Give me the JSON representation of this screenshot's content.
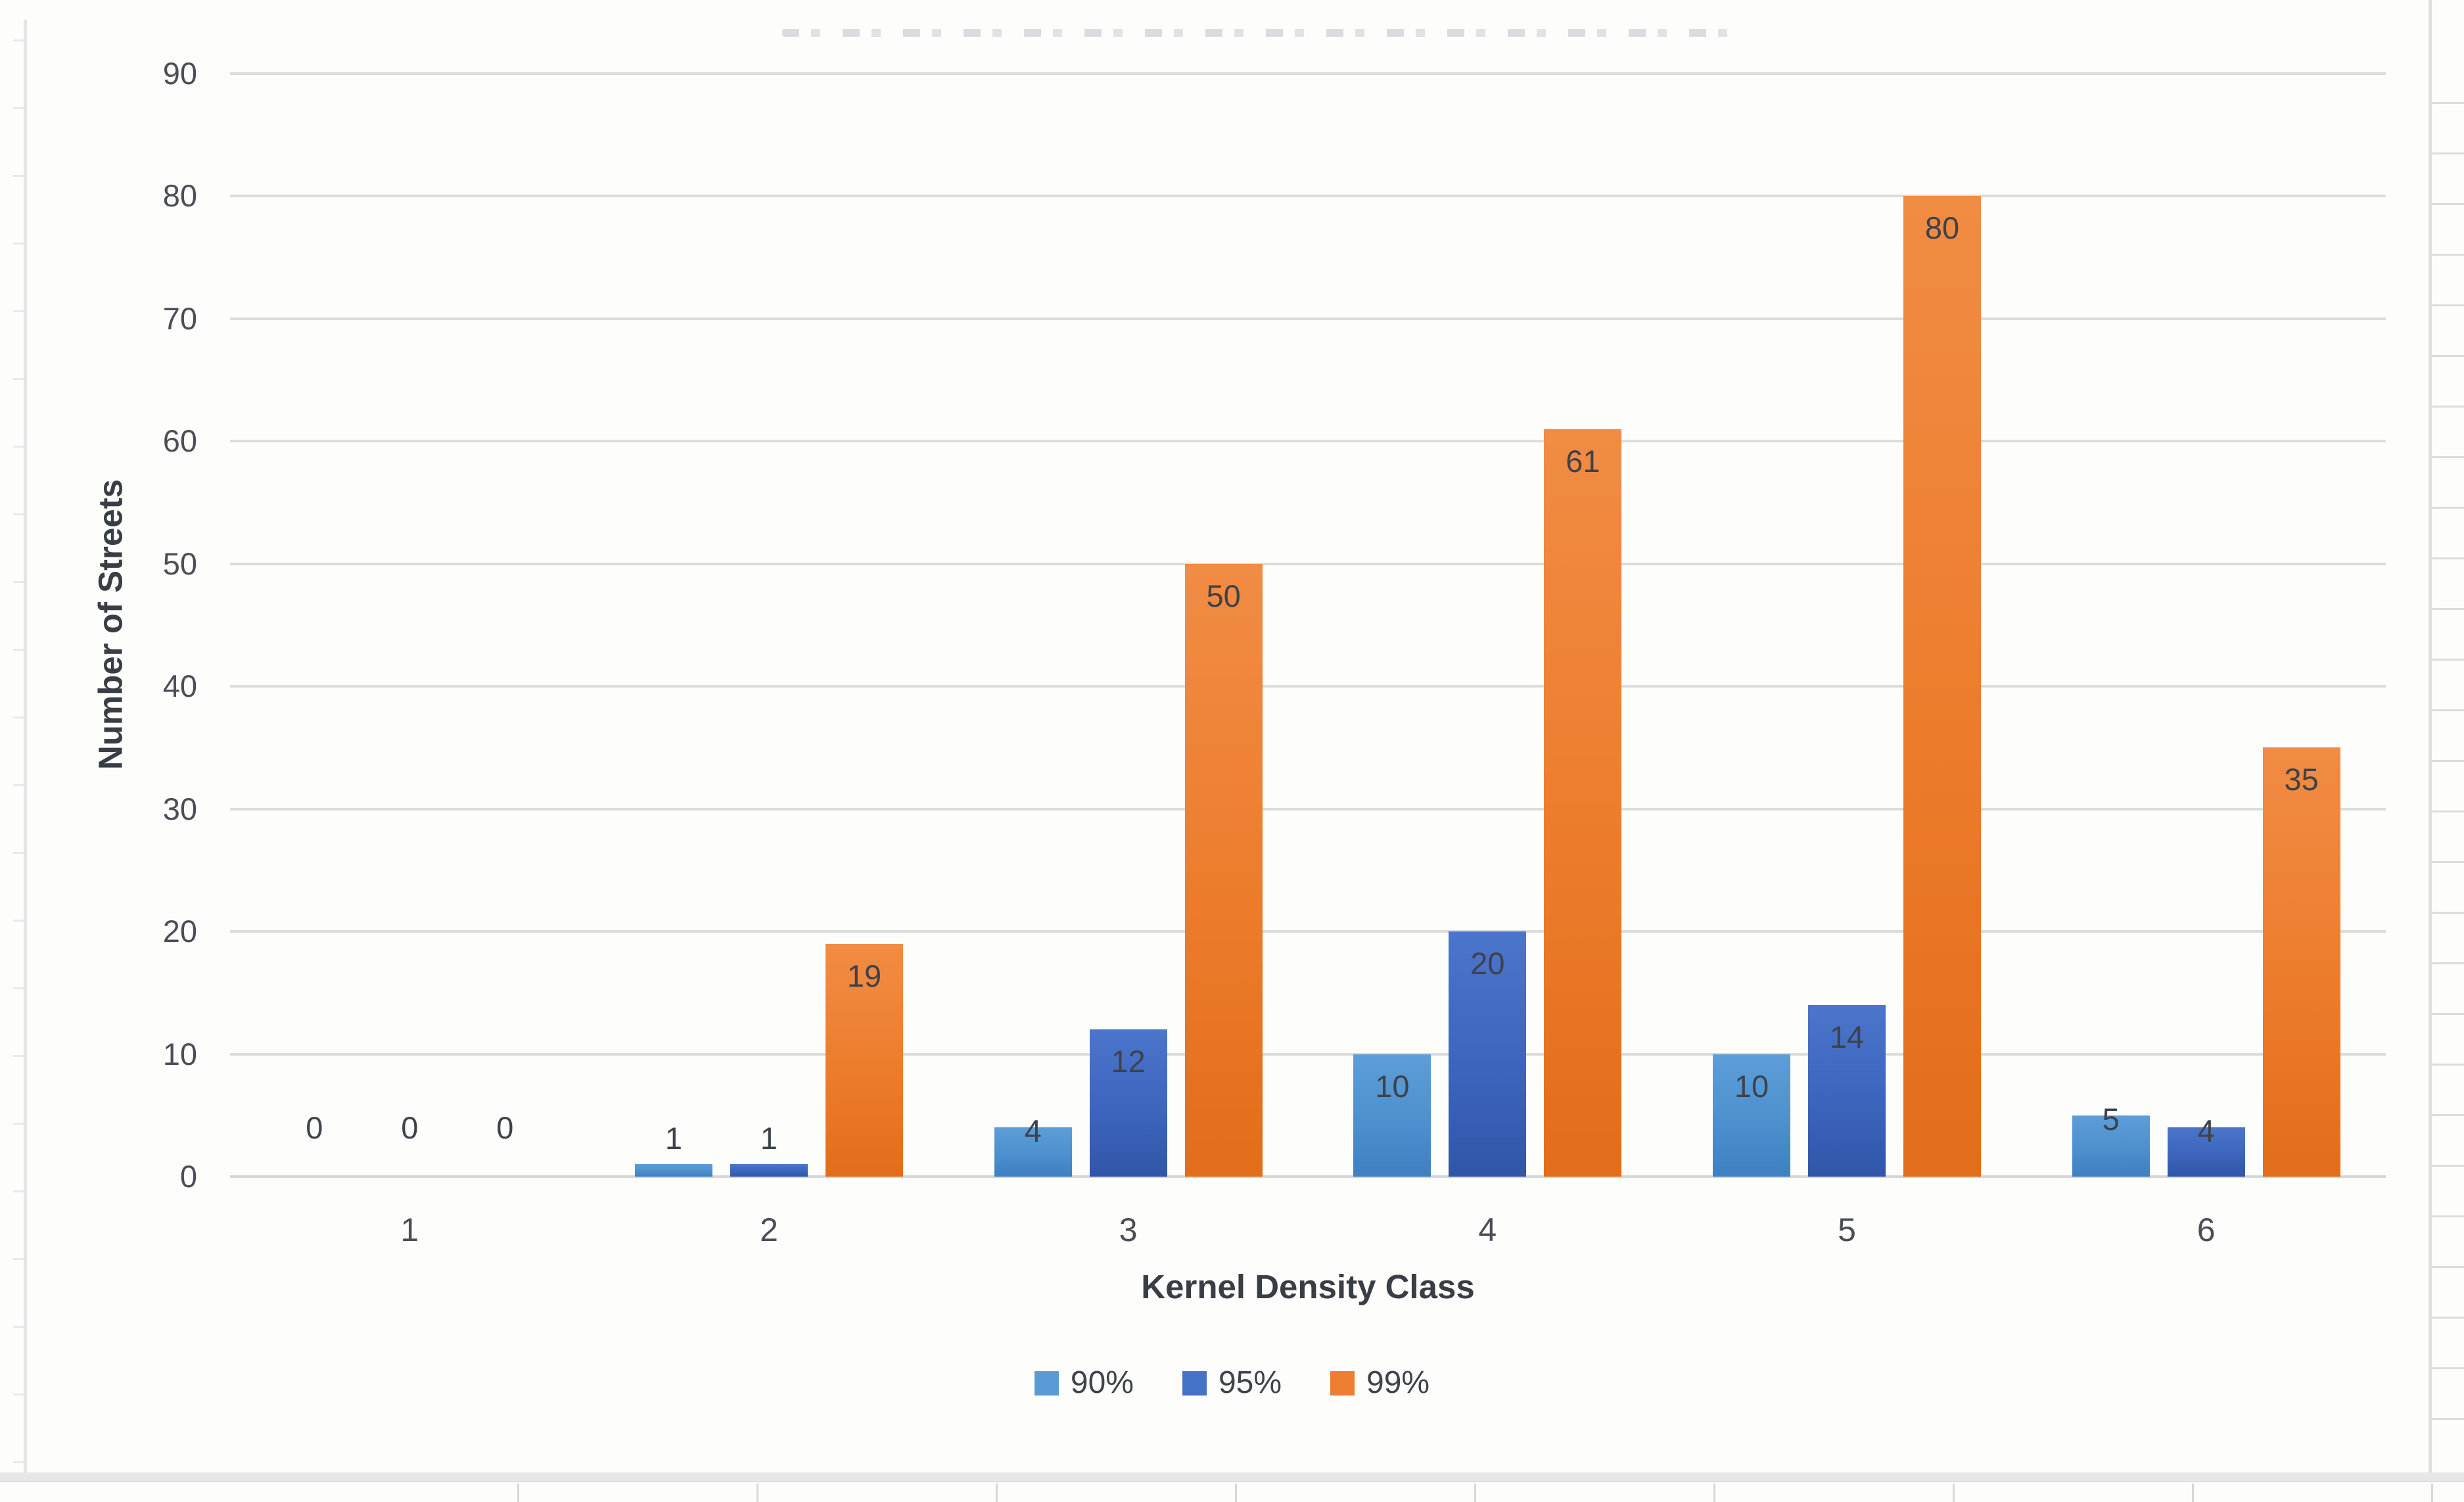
{
  "chart_data": {
    "type": "bar",
    "categories": [
      "1",
      "2",
      "3",
      "4",
      "5",
      "6"
    ],
    "series": [
      {
        "name": "90%",
        "color": "#5b9bd5",
        "values": [
          0,
          1,
          4,
          10,
          10,
          5
        ]
      },
      {
        "name": "95%",
        "color": "#4472c4",
        "values": [
          0,
          1,
          12,
          20,
          14,
          4
        ]
      },
      {
        "name": "99%",
        "color": "#ed7d31",
        "values": [
          0,
          19,
          50,
          61,
          80,
          35
        ]
      }
    ],
    "xlabel": "Kernel Density Class",
    "ylabel": "Number of Streets",
    "ylim": [
      0,
      90
    ],
    "ytick_step": 10,
    "y_tick_labels": [
      "90",
      "80",
      "70",
      "60",
      "50",
      "40",
      "30",
      "20",
      "10",
      "0"
    ],
    "grid": true,
    "legend_position": "bottom",
    "data_labels": true
  },
  "colors": {
    "gridline": "#dcdcdc",
    "tick_label": "#4b4e55",
    "data_label": "#3e424a",
    "axis_title": "#393d44"
  }
}
